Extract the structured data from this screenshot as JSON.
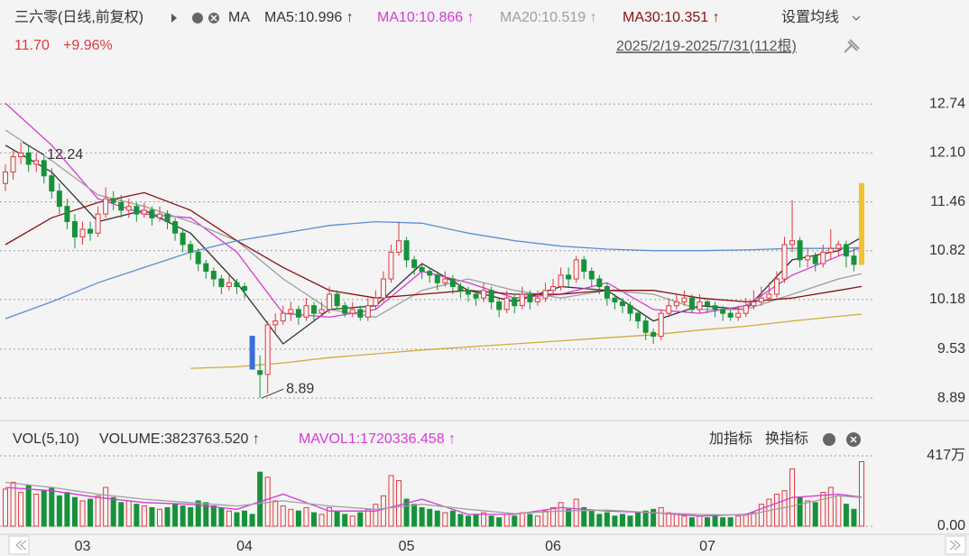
{
  "header": {
    "title": "三六零(日线,前复权)",
    "ma_label": "MA",
    "settings": "设置均线",
    "price": "11.70",
    "change": "+9.96%",
    "range": "2025/2/19-2025/7/31(112根)"
  },
  "volume_header": {
    "title": "VOL(5,10)",
    "volume": "VOLUME:3823763.520 ↑",
    "add": "加指标",
    "switch": "换指标"
  },
  "chart_data": [
    {
      "type": "candlestick",
      "open": [
        11.7,
        11.85,
        12.05,
        12.1,
        11.95,
        12.0,
        11.8,
        11.6,
        11.4,
        11.2,
        11.0,
        11.1,
        11.05,
        11.3,
        11.5,
        11.45,
        11.35,
        11.4,
        11.3,
        11.35,
        11.25,
        11.3,
        11.2,
        11.05,
        10.9,
        10.8,
        10.65,
        10.55,
        10.45,
        10.35,
        10.4,
        10.35,
        9.7,
        9.25,
        9.2,
        9.85,
        9.9,
        10.0,
        10.05,
        9.95,
        10.1,
        10.0,
        10.05,
        10.25,
        10.1,
        10.0,
        10.05,
        9.95,
        10.1,
        10.2,
        10.45,
        10.8,
        10.95,
        10.7,
        10.6,
        10.55,
        10.5,
        10.4,
        10.45,
        10.35,
        10.3,
        10.25,
        10.2,
        10.3,
        10.15,
        10.05,
        10.2,
        10.1,
        10.25,
        10.15,
        10.2,
        10.3,
        10.35,
        10.5,
        10.45,
        10.7,
        10.55,
        10.45,
        10.35,
        10.2,
        10.15,
        10.1,
        10.0,
        9.9,
        9.75,
        9.7,
        10.0,
        10.1,
        10.15,
        10.2,
        10.05,
        10.15,
        10.1,
        10.05,
        10.0,
        9.95,
        10.0,
        10.1,
        10.15,
        10.2,
        10.25,
        10.45,
        10.9,
        10.95,
        10.7,
        10.75,
        10.65,
        10.8,
        10.85,
        10.9,
        10.75,
        10.64
      ],
      "high": [
        11.95,
        12.15,
        12.24,
        12.2,
        12.1,
        12.05,
        11.9,
        11.7,
        11.5,
        11.3,
        11.2,
        11.2,
        11.4,
        11.65,
        11.6,
        11.55,
        11.5,
        11.45,
        11.45,
        11.4,
        11.4,
        11.35,
        11.25,
        11.1,
        10.95,
        10.85,
        10.7,
        10.6,
        10.5,
        10.5,
        10.45,
        10.4,
        9.7,
        9.45,
        9.9,
        10.0,
        10.1,
        10.15,
        10.1,
        10.2,
        10.15,
        10.15,
        10.35,
        10.3,
        10.15,
        10.15,
        10.1,
        10.2,
        10.3,
        10.55,
        10.9,
        11.2,
        11.0,
        10.75,
        10.65,
        10.6,
        10.55,
        10.55,
        10.5,
        10.4,
        10.35,
        10.3,
        10.4,
        10.35,
        10.2,
        10.3,
        10.25,
        10.35,
        10.3,
        10.3,
        10.4,
        10.45,
        10.6,
        10.6,
        10.75,
        10.75,
        10.6,
        10.5,
        10.4,
        10.25,
        10.2,
        10.15,
        10.05,
        9.95,
        9.8,
        10.05,
        10.2,
        10.25,
        10.3,
        10.25,
        10.25,
        10.2,
        10.15,
        10.1,
        10.05,
        10.1,
        10.2,
        10.3,
        10.35,
        10.4,
        10.55,
        11.0,
        11.48,
        11.0,
        10.85,
        10.8,
        10.9,
        11.1,
        10.95,
        10.95,
        10.85,
        11.7
      ],
      "low": [
        11.6,
        11.75,
        11.95,
        11.85,
        11.85,
        11.7,
        11.5,
        11.3,
        11.1,
        10.85,
        10.9,
        10.95,
        11.0,
        11.25,
        11.35,
        11.25,
        11.25,
        11.2,
        11.25,
        11.15,
        11.2,
        11.1,
        10.95,
        10.8,
        10.7,
        10.55,
        10.45,
        10.35,
        10.25,
        10.3,
        10.25,
        10.2,
        9.27,
        8.89,
        8.95,
        9.75,
        9.85,
        9.9,
        9.85,
        9.9,
        9.9,
        9.95,
        10.0,
        10.05,
        9.95,
        9.95,
        9.9,
        9.9,
        10.05,
        10.15,
        10.4,
        10.75,
        10.6,
        10.5,
        10.45,
        10.4,
        10.3,
        10.35,
        10.25,
        10.2,
        10.15,
        10.1,
        10.15,
        10.05,
        9.95,
        10.0,
        10.0,
        10.05,
        10.05,
        10.1,
        10.15,
        10.25,
        10.3,
        10.35,
        10.4,
        10.45,
        10.35,
        10.25,
        10.1,
        10.05,
        10.0,
        9.9,
        9.8,
        9.65,
        9.6,
        9.65,
        9.95,
        10.05,
        10.1,
        10.0,
        10.0,
        10.0,
        9.95,
        9.9,
        9.9,
        9.9,
        9.95,
        10.05,
        10.1,
        10.15,
        10.2,
        10.4,
        10.8,
        10.6,
        10.6,
        10.55,
        10.6,
        10.7,
        10.75,
        10.6,
        10.55,
        10.64
      ],
      "close": [
        11.85,
        12.05,
        12.1,
        11.95,
        12.0,
        11.8,
        11.6,
        11.4,
        11.2,
        11.0,
        11.1,
        11.05,
        11.3,
        11.5,
        11.45,
        11.35,
        11.4,
        11.3,
        11.35,
        11.25,
        11.3,
        11.2,
        11.05,
        10.9,
        10.8,
        10.65,
        10.55,
        10.45,
        10.35,
        10.4,
        10.35,
        10.3,
        9.27,
        9.2,
        9.85,
        9.9,
        10.0,
        10.05,
        9.95,
        10.1,
        10.0,
        10.05,
        10.25,
        10.1,
        10.0,
        10.05,
        9.95,
        10.1,
        10.2,
        10.45,
        10.8,
        10.95,
        10.7,
        10.6,
        10.55,
        10.5,
        10.4,
        10.45,
        10.35,
        10.3,
        10.25,
        10.2,
        10.3,
        10.15,
        10.05,
        10.2,
        10.1,
        10.25,
        10.15,
        10.2,
        10.3,
        10.35,
        10.5,
        10.45,
        10.7,
        10.55,
        10.45,
        10.35,
        10.2,
        10.15,
        10.1,
        10.0,
        9.9,
        9.75,
        9.7,
        10.0,
        10.1,
        10.15,
        10.2,
        10.05,
        10.15,
        10.1,
        10.05,
        10.0,
        9.95,
        10.0,
        10.1,
        10.15,
        10.2,
        10.25,
        10.45,
        10.9,
        10.95,
        10.7,
        10.75,
        10.65,
        10.8,
        10.85,
        10.9,
        10.75,
        10.64,
        11.7
      ],
      "up_color": "#e0393e",
      "down_color": "#17923a",
      "limit_up_color": "#f2c230",
      "limit_down_color": "#3a6fd8",
      "ylim": [
        8.69,
        12.92
      ],
      "yticks": [
        8.89,
        9.53,
        10.18,
        10.82,
        11.46,
        {
          "value": 12.1,
          "label": "12.10"
        },
        12.74
      ],
      "grid": true,
      "annotations": [
        12.24,
        8.89
      ],
      "line_x": [
        0,
        6,
        12,
        18,
        24,
        30,
        36,
        42,
        48,
        54,
        60,
        66,
        72,
        78,
        84,
        90,
        96,
        102,
        108,
        111
      ],
      "series": [
        {
          "name": "MA5:10.996 ↑",
          "color": "#333333",
          "values": [
            12.2,
            11.85,
            11.2,
            11.35,
            11.05,
            10.4,
            9.6,
            10.05,
            10.1,
            10.65,
            10.3,
            10.15,
            10.35,
            10.3,
            9.9,
            10.1,
            10.05,
            10.7,
            10.82,
            10.996
          ]
        },
        {
          "name": "MA10:10.866 ↑",
          "color": "#d63ad6",
          "values": [
            12.75,
            12.2,
            11.5,
            11.3,
            11.25,
            10.8,
            10.0,
            9.95,
            10.05,
            10.55,
            10.4,
            10.2,
            10.25,
            10.4,
            10.05,
            10.0,
            10.1,
            10.5,
            10.75,
            10.866
          ]
        },
        {
          "name": "MA20:10.519 ↑",
          "color": "#9e9e9e",
          "values": [
            12.4,
            12.0,
            11.55,
            11.4,
            11.2,
            10.95,
            10.45,
            10.05,
            9.95,
            10.3,
            10.45,
            10.3,
            10.2,
            10.3,
            10.25,
            10.05,
            10.05,
            10.25,
            10.45,
            10.519
          ]
        },
        {
          "name": "MA30:10.351 ↑",
          "color": "#8b1010",
          "values": [
            10.9,
            11.25,
            11.45,
            11.58,
            11.35,
            10.95,
            10.6,
            10.3,
            10.2,
            10.25,
            10.3,
            10.25,
            10.25,
            10.3,
            10.3,
            10.2,
            10.15,
            10.2,
            10.3,
            10.351
          ]
        },
        {
          "color": "#5b8fd0",
          "values": [
            9.93,
            10.15,
            10.4,
            10.6,
            10.8,
            10.95,
            11.05,
            11.15,
            11.2,
            11.18,
            11.05,
            10.95,
            10.88,
            10.84,
            10.82,
            10.82,
            10.83,
            10.85,
            10.85,
            10.86
          ]
        },
        {
          "color": "#d4a93c",
          "values": [
            null,
            null,
            null,
            null,
            9.28,
            9.3,
            9.35,
            9.42,
            9.47,
            9.52,
            9.56,
            9.6,
            9.64,
            9.68,
            9.72,
            9.78,
            9.83,
            9.9,
            9.96,
            9.99
          ]
        }
      ]
    },
    {
      "type": "bar",
      "values": [
        2200000,
        2600000,
        2000000,
        2400000,
        1900000,
        2100000,
        2300000,
        1800000,
        2000000,
        1700000,
        1500000,
        1600000,
        1800000,
        2300000,
        1700000,
        1400000,
        1500000,
        1300000,
        1200000,
        1100000,
        1000000,
        1100000,
        1300000,
        1200000,
        1100000,
        1500000,
        1400000,
        1200000,
        1100000,
        900000,
        800000,
        900000,
        700000,
        3200000,
        2900000,
        1500000,
        1200000,
        1000000,
        900000,
        1100000,
        800000,
        700000,
        1100000,
        900000,
        700000,
        600000,
        800000,
        1000000,
        1300000,
        1800000,
        3000000,
        2700000,
        1600000,
        1300000,
        1100000,
        1000000,
        900000,
        800000,
        900000,
        700000,
        600000,
        700000,
        800000,
        600000,
        500000,
        700000,
        600000,
        800000,
        700000,
        600000,
        900000,
        1100000,
        1400000,
        1000000,
        1600000,
        1100000,
        900000,
        700000,
        800000,
        600000,
        700000,
        600000,
        800000,
        900000,
        1000000,
        1100000,
        800000,
        700000,
        600000,
        500000,
        600000,
        500000,
        600000,
        500000,
        500000,
        600000,
        700000,
        800000,
        1300000,
        1600000,
        1900000,
        2100000,
        3400000,
        1700000,
        1500000,
        1400000,
        2000000,
        2300000,
        1800000,
        1300000,
        1000000,
        3823763.52
      ],
      "ylim": [
        0,
        4170000
      ],
      "yticks": [
        {
          "value": 0,
          "label": "0.00"
        },
        {
          "value": 4170000,
          "label": "417万"
        }
      ],
      "xticks": [
        {
          "value": 10,
          "label": "03"
        },
        {
          "value": 31,
          "label": "04"
        },
        {
          "value": 52,
          "label": "05"
        },
        {
          "value": 71,
          "label": "06"
        },
        {
          "value": 91,
          "label": "07"
        }
      ],
      "line_x": [
        0,
        6,
        12,
        18,
        24,
        30,
        36,
        42,
        48,
        54,
        60,
        66,
        72,
        78,
        84,
        90,
        96,
        102,
        108,
        111
      ],
      "series": [
        {
          "name": "MAVOL1:1720336.458 ↑",
          "color": "#d63ad6",
          "values": [
            2300000,
            2100000,
            1700000,
            1400000,
            1300000,
            1000000,
            1900000,
            900000,
            900000,
            1600000,
            700000,
            700000,
            1100000,
            900000,
            800000,
            600000,
            700000,
            1700000,
            1900000,
            1720336.458
          ]
        },
        {
          "color": "#a0a0a0",
          "values": [
            2600000,
            2300000,
            1900000,
            1600000,
            1400000,
            1200000,
            1500000,
            1200000,
            1000000,
            1300000,
            1000000,
            750000,
            900000,
            950000,
            800000,
            700000,
            650000,
            1200000,
            1800000,
            1700000
          ]
        }
      ]
    }
  ]
}
